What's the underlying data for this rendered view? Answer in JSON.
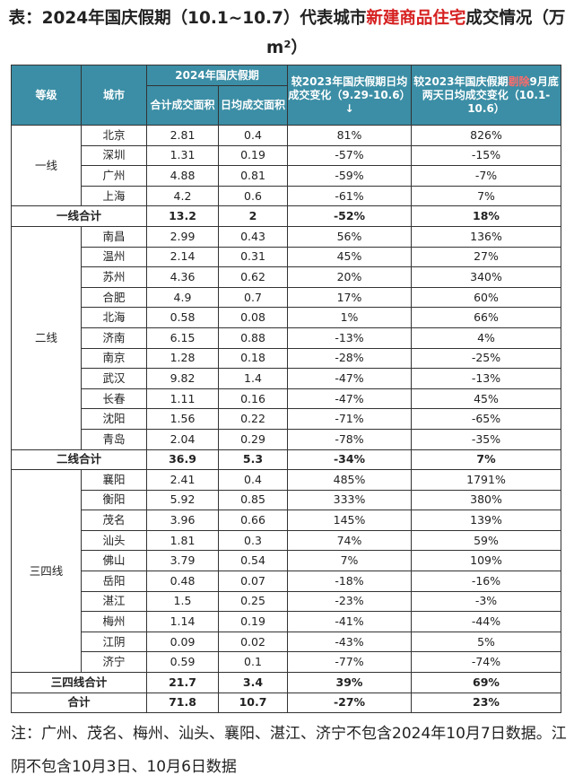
{
  "title": {
    "prefix": "表：2024年国庆假期（10.1~10.7）代表城市",
    "highlight": "新建商品住宅",
    "suffix": "成交情况（万m²）"
  },
  "table": {
    "header": {
      "level": "等级",
      "city": "城市",
      "group": "2024年国庆假期",
      "total_area": "合计成交面积",
      "daily_area": "日均成交面积",
      "change_2023": "较2023年国庆假期日均成交变化（9.29-10.6）↓",
      "change_excl": [
        "较2023年国庆假期",
        "剔除",
        "9月底两天日均成交变化（10.1-10.6）"
      ]
    },
    "groups": [
      {
        "level": "一线",
        "rows": [
          [
            "北京",
            "2.81",
            "0.4",
            "81%",
            "826%"
          ],
          [
            "深圳",
            "1.31",
            "0.19",
            "-57%",
            "-15%"
          ],
          [
            "广州",
            "4.88",
            "0.81",
            "-59%",
            "-7%"
          ],
          [
            "上海",
            "4.2",
            "0.6",
            "-61%",
            "7%"
          ]
        ],
        "subtotal": [
          "一线合计",
          "13.2",
          "2",
          "-52%",
          "18%"
        ]
      },
      {
        "level": "二线",
        "rows": [
          [
            "南昌",
            "2.99",
            "0.43",
            "56%",
            "136%"
          ],
          [
            "温州",
            "2.14",
            "0.31",
            "45%",
            "27%"
          ],
          [
            "苏州",
            "4.36",
            "0.62",
            "20%",
            "340%"
          ],
          [
            "合肥",
            "4.9",
            "0.7",
            "17%",
            "60%"
          ],
          [
            "北海",
            "0.58",
            "0.08",
            "1%",
            "66%"
          ],
          [
            "济南",
            "6.15",
            "0.88",
            "-13%",
            "4%"
          ],
          [
            "南京",
            "1.28",
            "0.18",
            "-28%",
            "-25%"
          ],
          [
            "武汉",
            "9.82",
            "1.4",
            "-47%",
            "-13%"
          ],
          [
            "长春",
            "1.11",
            "0.16",
            "-47%",
            "45%"
          ],
          [
            "沈阳",
            "1.56",
            "0.22",
            "-71%",
            "-65%"
          ],
          [
            "青岛",
            "2.04",
            "0.29",
            "-78%",
            "-35%"
          ]
        ],
        "subtotal": [
          "二线合计",
          "36.9",
          "5.3",
          "-34%",
          "7%"
        ]
      },
      {
        "level": "三四线",
        "rows": [
          [
            "襄阳",
            "2.41",
            "0.4",
            "485%",
            "1791%"
          ],
          [
            "衡阳",
            "5.92",
            "0.85",
            "333%",
            "380%"
          ],
          [
            "茂名",
            "3.96",
            "0.66",
            "145%",
            "139%"
          ],
          [
            "汕头",
            "1.81",
            "0.3",
            "74%",
            "59%"
          ],
          [
            "佛山",
            "3.79",
            "0.54",
            "7%",
            "109%"
          ],
          [
            "岳阳",
            "0.48",
            "0.07",
            "-18%",
            "-16%"
          ],
          [
            "湛江",
            "1.5",
            "0.25",
            "-23%",
            "-3%"
          ],
          [
            "梅州",
            "1.14",
            "0.19",
            "-41%",
            "-44%"
          ],
          [
            "江阴",
            "0.09",
            "0.02",
            "-43%",
            "5%"
          ],
          [
            "济宁",
            "0.59",
            "0.1",
            "-77%",
            "-74%"
          ]
        ],
        "subtotal": [
          "三四线合计",
          "21.7",
          "3.4",
          "39%",
          "69%"
        ]
      }
    ],
    "total": [
      "合计",
      "71.8",
      "10.7",
      "-27%",
      "23%"
    ]
  },
  "note": "注：广州、茂名、梅州、汕头、襄阳、湛江、济宁不包含2024年10月7日数据。江阴不包含10月3日、10月6日数据"
}
